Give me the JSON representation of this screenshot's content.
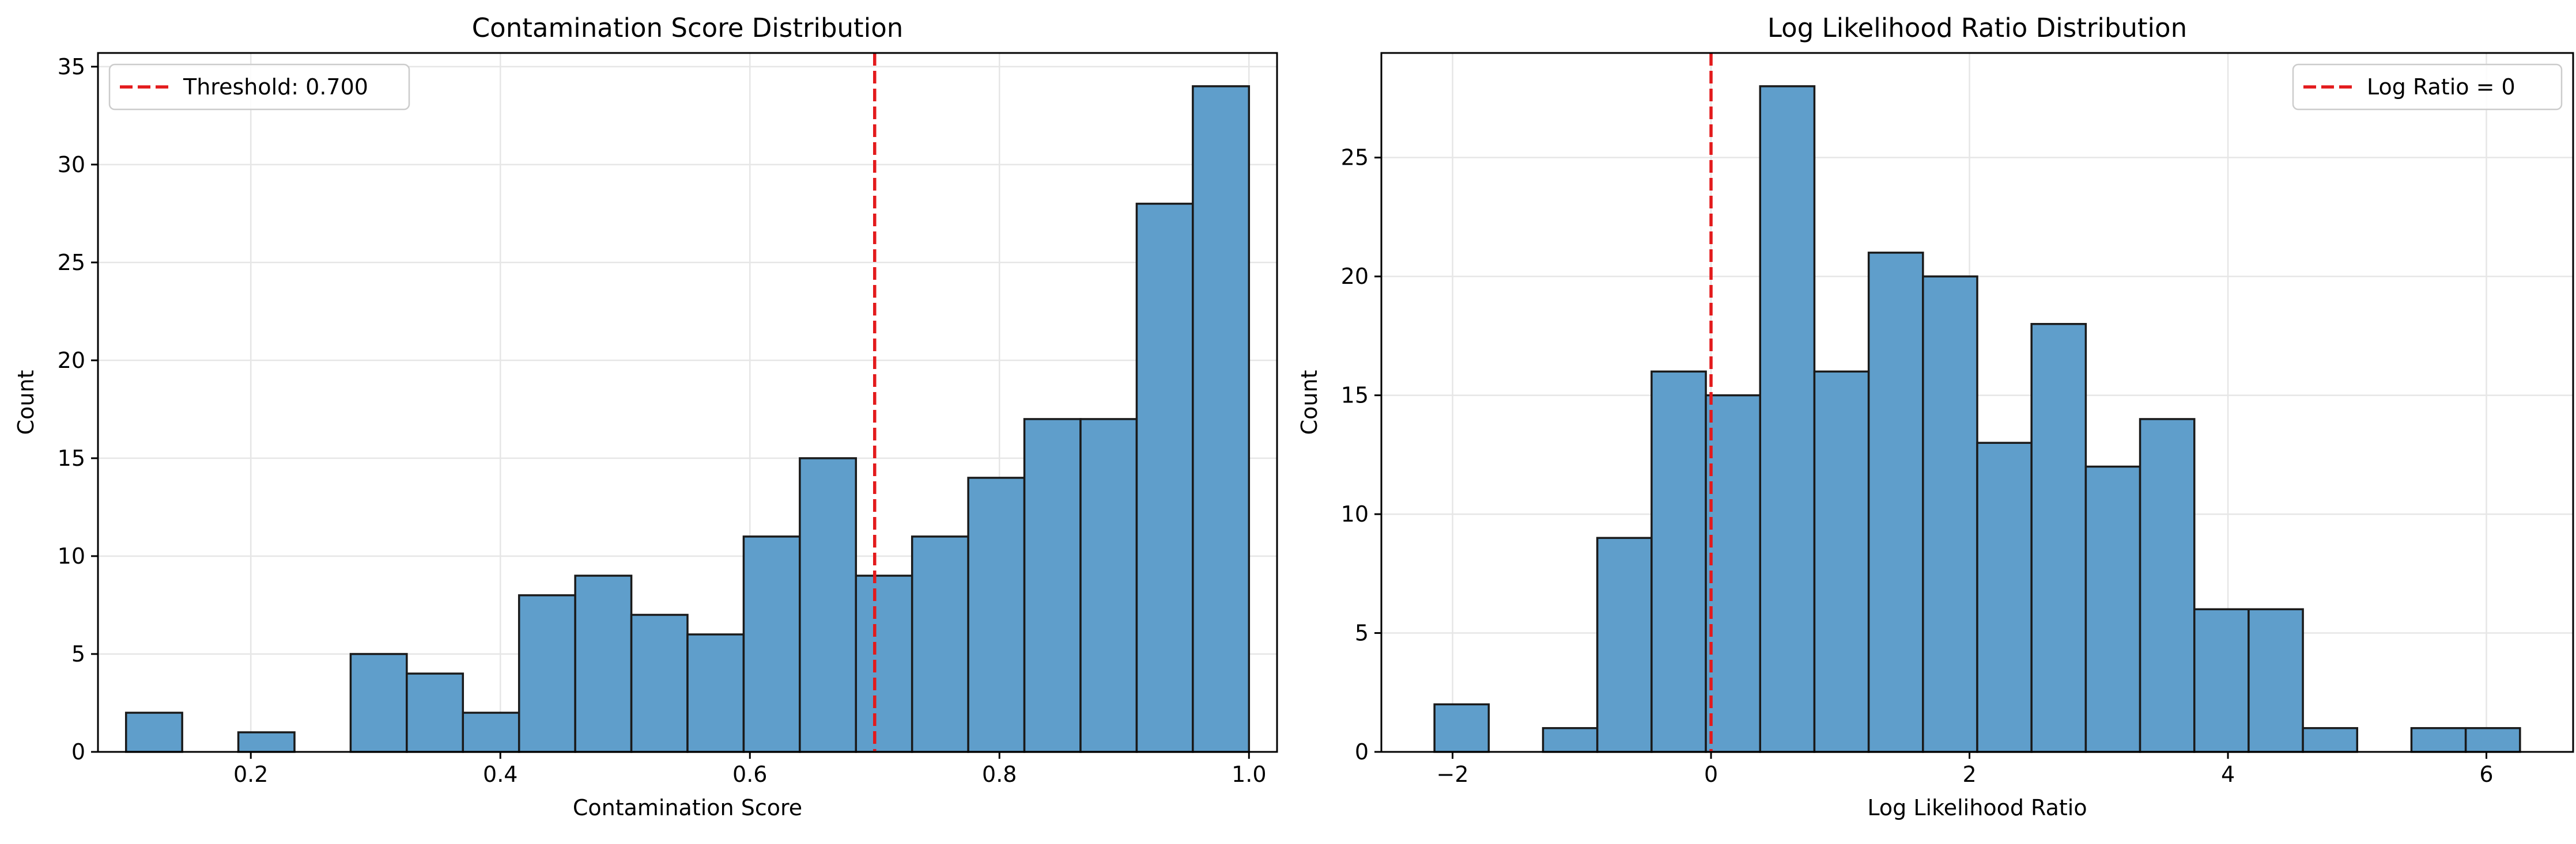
{
  "figure": {
    "background": "#ffffff"
  },
  "chart_data": [
    {
      "type": "bar",
      "title": "Contamination Score Distribution",
      "xlabel": "Contamination Score",
      "ylabel": "Count",
      "bin_edges": [
        0.1,
        0.145,
        0.19,
        0.235,
        0.28,
        0.325,
        0.37,
        0.415,
        0.46,
        0.505,
        0.55,
        0.595,
        0.64,
        0.685,
        0.73,
        0.775,
        0.82,
        0.865,
        0.91,
        0.955,
        1.0
      ],
      "values": [
        2,
        0,
        1,
        0,
        5,
        4,
        2,
        8,
        9,
        7,
        6,
        11,
        15,
        9,
        11,
        14,
        17,
        17,
        28,
        34
      ],
      "xlim": [
        0.0775,
        1.0225
      ],
      "ylim": [
        0,
        35.7
      ],
      "xticks": [
        0.2,
        0.4,
        0.6,
        0.8,
        1.0
      ],
      "xtick_labels": [
        "0.2",
        "0.4",
        "0.6",
        "0.8",
        "1.0"
      ],
      "yticks": [
        0,
        5,
        10,
        15,
        20,
        25,
        30,
        35
      ],
      "ytick_labels": [
        "0",
        "5",
        "10",
        "15",
        "20",
        "25",
        "30",
        "35"
      ],
      "vline": {
        "x": 0.7,
        "label": "Threshold: 0.700",
        "color": "#e31a1c",
        "style": "dashed"
      },
      "legend": {
        "position": "top-left",
        "entries": [
          "Threshold: 0.700"
        ]
      },
      "bar_color": "#5f9ecb",
      "bar_edge_color": "#1a1a1a",
      "grid": true
    },
    {
      "type": "bar",
      "title": "Log Likelihood Ratio Distribution",
      "xlabel": "Log Likelihood Ratio",
      "ylabel": "Count",
      "bin_edges": [
        -2.14,
        -1.72,
        -1.3,
        -0.88,
        -0.46,
        -0.04,
        0.38,
        0.8,
        1.22,
        1.64,
        2.06,
        2.48,
        2.9,
        3.32,
        3.74,
        4.16,
        4.58,
        5.0,
        5.42,
        5.84,
        6.26
      ],
      "values": [
        2,
        0,
        1,
        9,
        16,
        15,
        28,
        16,
        21,
        20,
        13,
        18,
        12,
        14,
        6,
        6,
        1,
        0,
        1,
        1
      ],
      "xlim": [
        -2.551,
        6.671
      ],
      "ylim": [
        0,
        29.4
      ],
      "xticks": [
        -2,
        0,
        2,
        4,
        6
      ],
      "xtick_labels": [
        "−2",
        "0",
        "2",
        "4",
        "6"
      ],
      "yticks": [
        0,
        5,
        10,
        15,
        20,
        25
      ],
      "ytick_labels": [
        "0",
        "5",
        "10",
        "15",
        "20",
        "25"
      ],
      "vline": {
        "x": 0,
        "label": "Log Ratio = 0",
        "color": "#e31a1c",
        "style": "dashed"
      },
      "legend": {
        "position": "top-right",
        "entries": [
          "Log Ratio = 0"
        ]
      },
      "bar_color": "#5f9ecb",
      "bar_edge_color": "#1a1a1a",
      "grid": true
    }
  ]
}
